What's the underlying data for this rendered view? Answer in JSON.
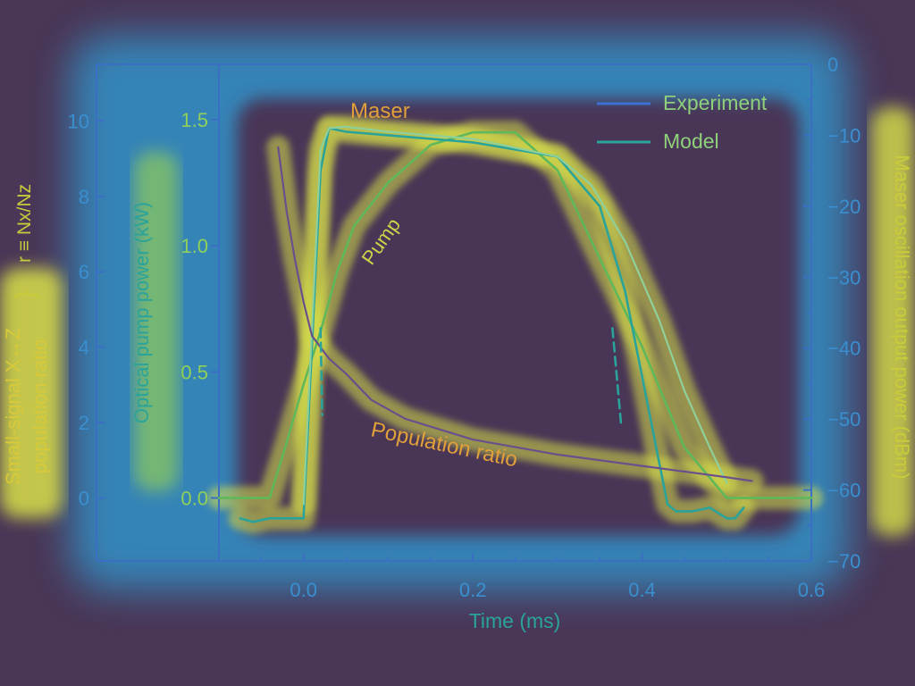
{
  "chart_data": {
    "type": "line",
    "xlabel": "Time (ms)",
    "x_ticks": [
      "0.0",
      "0.2",
      "0.4",
      "0.6"
    ],
    "xlim": [
      -0.1,
      0.6
    ],
    "axes": {
      "population_ratio": {
        "label_lines": [
          "Small-signal X↔Z",
          "population ratio"
        ],
        "bracket_label": "r ≡ Nx/Nz",
        "ylim": [
          -1.67,
          11.5
        ],
        "ticks": [
          "0",
          "2",
          "4",
          "6",
          "8",
          "10"
        ]
      },
      "pump_power": {
        "label": "Optical pump power (kW)",
        "ylim": [
          -0.25,
          1.72
        ],
        "ticks": [
          "0.0",
          "0.5",
          "1.0",
          "1.5"
        ]
      },
      "maser_power": {
        "label": "Maser oscillation output power (dBm)",
        "ylim": [
          -70,
          0
        ],
        "ticks": [
          "0",
          "−10",
          "−20",
          "−30",
          "−40",
          "−50",
          "−60",
          "−70"
        ]
      }
    },
    "legend": {
      "position": "top-right",
      "entries": [
        "Experiment",
        "Model"
      ]
    },
    "annotations": [
      "Maser",
      "Pump",
      "Population ratio"
    ],
    "series": [
      {
        "name": "Pump",
        "axis": "pump_power",
        "style": "experiment",
        "color": "#5fb85a",
        "x": [
          -0.1,
          -0.04,
          -0.02,
          0.0,
          0.02,
          0.04,
          0.06,
          0.1,
          0.15,
          0.2,
          0.25,
          0.3,
          0.35,
          0.4,
          0.45,
          0.5,
          0.55,
          0.6
        ],
        "y": [
          0.0,
          0.0,
          0.22,
          0.45,
          0.66,
          0.9,
          1.08,
          1.25,
          1.4,
          1.45,
          1.45,
          1.3,
          0.95,
          0.6,
          0.2,
          0.0,
          0.0,
          0.0
        ]
      },
      {
        "name": "Maser",
        "axis": "maser_power",
        "style": "experiment",
        "color": "#2aa39a",
        "x": [
          -0.075,
          -0.06,
          -0.04,
          -0.02,
          0.0,
          0.02,
          0.03,
          0.05,
          0.1,
          0.2,
          0.3,
          0.35,
          0.38,
          0.4,
          0.42,
          0.43,
          0.44,
          0.46,
          0.48,
          0.5,
          0.51,
          0.52
        ],
        "y": [
          -64,
          -64.5,
          -64,
          -64,
          -64,
          -15,
          -9,
          -9.5,
          -10,
          -11,
          -13,
          -20,
          -32,
          -44,
          -56,
          -62,
          -63,
          -63,
          -62.5,
          -64,
          -64,
          -62.5
        ]
      },
      {
        "name": "Maser",
        "axis": "maser_power",
        "style": "model",
        "color": "#8fd09a",
        "x": [
          0.0,
          0.02,
          0.03,
          0.05,
          0.1,
          0.2,
          0.3,
          0.34,
          0.38,
          0.42,
          0.45,
          0.48,
          0.5
        ],
        "y": [
          -62,
          -12,
          -9,
          -8.8,
          -9.5,
          -10.5,
          -13,
          -17,
          -25,
          -36,
          -46,
          -54,
          -59
        ]
      },
      {
        "name": "Population ratio",
        "axis": "population_ratio",
        "style": "model",
        "color": "#6b4f8c",
        "x": [
          -0.03,
          -0.02,
          -0.01,
          0.0,
          0.01,
          0.03,
          0.05,
          0.08,
          0.12,
          0.2,
          0.3,
          0.4,
          0.5,
          0.53
        ],
        "y": [
          9.3,
          7.6,
          6.3,
          5.2,
          4.3,
          3.7,
          3.3,
          2.6,
          2.1,
          1.55,
          1.15,
          0.85,
          0.55,
          0.45
        ]
      },
      {
        "name": "Maser threshold",
        "axis": "population_ratio",
        "style": "dashed",
        "color": "#2aa39a",
        "x": [
          0.02,
          0.022
        ],
        "y": [
          4.5,
          2.2
        ]
      },
      {
        "name": "Maser threshold",
        "axis": "population_ratio",
        "style": "dashed",
        "color": "#2aa39a",
        "x": [
          0.365,
          0.375
        ],
        "y": [
          4.5,
          2.0
        ]
      }
    ]
  }
}
